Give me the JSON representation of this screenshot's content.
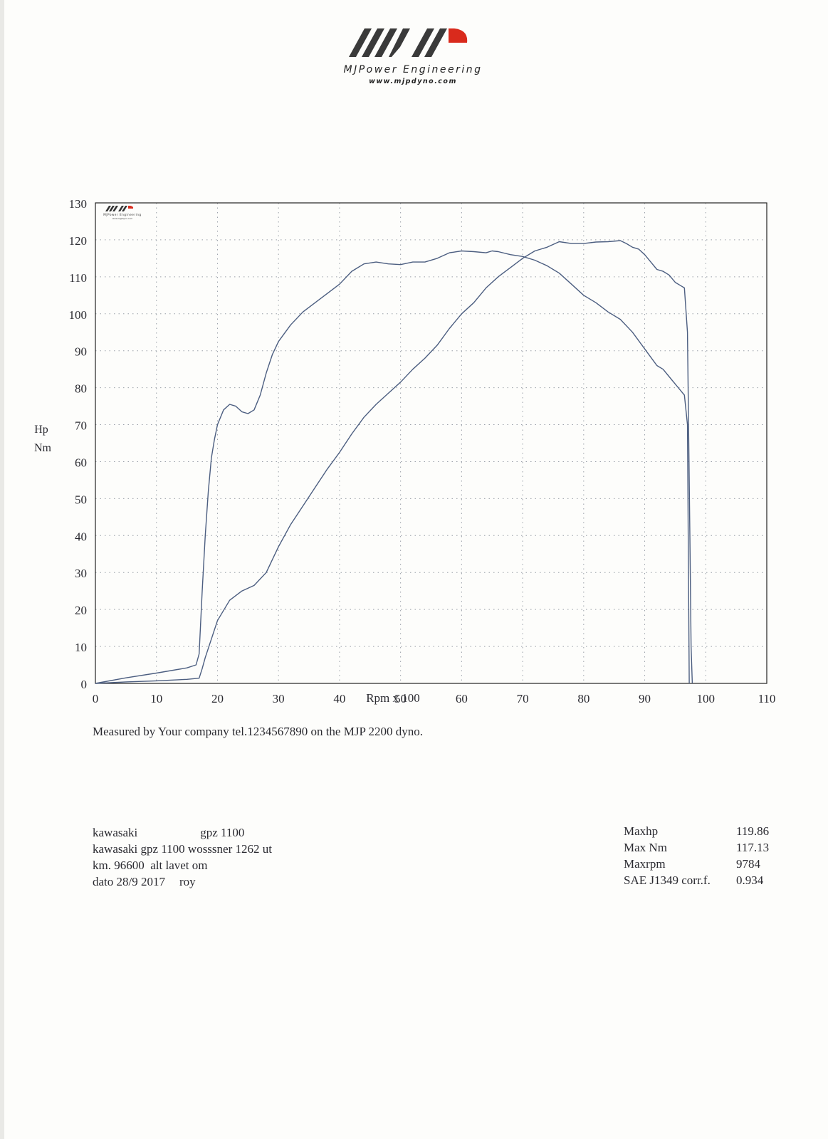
{
  "brand": {
    "name": "MJPower Engineering",
    "url": "www.mjpdyno.com",
    "colors": {
      "stripes": "#3a3a3a",
      "accent": "#d92a1c"
    }
  },
  "chart_data": {
    "type": "line",
    "ylabel": [
      "Hp",
      "Nm"
    ],
    "xlabel": "Rpm x 100",
    "xlim": [
      0,
      110
    ],
    "ylim": [
      0,
      130
    ],
    "xticks": [
      0,
      10,
      20,
      30,
      40,
      50,
      60,
      70,
      80,
      90,
      100,
      110
    ],
    "yticks": [
      0,
      10,
      20,
      30,
      40,
      50,
      60,
      70,
      80,
      90,
      100,
      110,
      120,
      130
    ],
    "grid": "dotted",
    "line_color": "#4c5e80",
    "series": [
      {
        "x": [
          0,
          5,
          10,
          15,
          16.5,
          17,
          17.5,
          18,
          18.5,
          19,
          19.5,
          20,
          21,
          22,
          23,
          24,
          25,
          26,
          27,
          28,
          29,
          30,
          32,
          34,
          36,
          38,
          40,
          42,
          44,
          46,
          48,
          50,
          52,
          54,
          56,
          58,
          60,
          62,
          64,
          65,
          66,
          68,
          70,
          72,
          74,
          76,
          78,
          80,
          82,
          84,
          86,
          88,
          90,
          92,
          93,
          94,
          95,
          96,
          96.5,
          97,
          97.3
        ],
        "y": [
          0,
          1.5,
          2.8,
          4.2,
          5,
          8,
          25,
          40,
          52,
          61,
          66,
          70,
          74,
          75.5,
          75,
          73.5,
          73,
          74,
          78,
          84,
          89,
          92.5,
          97,
          100.5,
          103,
          105.5,
          108,
          111.5,
          113.5,
          114,
          113.5,
          113.3,
          114,
          114,
          115,
          116.5,
          117,
          116.8,
          116.5,
          117,
          116.8,
          116,
          115.5,
          114.5,
          113,
          111,
          108,
          105,
          103,
          100.5,
          98.5,
          95,
          90.5,
          86,
          85,
          83,
          81,
          79,
          78,
          70,
          0
        ]
      },
      {
        "x": [
          0,
          5,
          10,
          15,
          17,
          17.5,
          18,
          19,
          20,
          22,
          24,
          26,
          28,
          30,
          32,
          34,
          36,
          38,
          40,
          42,
          44,
          46,
          48,
          50,
          52,
          54,
          56,
          58,
          60,
          62,
          64,
          66,
          68,
          70,
          72,
          74,
          76,
          78,
          80,
          82,
          84,
          86,
          87,
          88,
          89,
          90,
          91,
          92,
          93,
          94,
          95,
          96,
          96.5,
          97,
          97.4,
          97.6,
          97.8
        ],
        "y": [
          0,
          0.4,
          0.7,
          1.1,
          1.4,
          4,
          7,
          12,
          17,
          22.5,
          25,
          26.5,
          30,
          37,
          43,
          48,
          53,
          58,
          62.5,
          67.5,
          72,
          75.5,
          78.5,
          81.5,
          85,
          88,
          91.5,
          96,
          100,
          103,
          107,
          110,
          112.5,
          115,
          117,
          118,
          119.5,
          119,
          119,
          119.4,
          119.5,
          119.8,
          119,
          118,
          117.5,
          116,
          114,
          112,
          111.5,
          110.5,
          108.5,
          107.5,
          107,
          95,
          40,
          10,
          0
        ]
      }
    ]
  },
  "chart_inset_logo": {
    "name": "MJPower Engineering",
    "url": "www.mjpdyno.com"
  },
  "caption": "Measured by Your company tel.1234567890 on the MJP 2200 dyno.",
  "vehicle": {
    "make": "kawasaki",
    "model": "gpz 1100",
    "description": "kawasaki gpz 1100 wosssner 1262 ut",
    "mileage": "km. 96600  alt lavet om",
    "date": "dato 28/9 2017",
    "operator": "roy"
  },
  "results": [
    {
      "label": "Maxhp",
      "value": "119.86"
    },
    {
      "label": "Max Nm",
      "value": "117.13"
    },
    {
      "label": "Maxrpm",
      "value": "9784"
    },
    {
      "label": "SAE J1349 corr.f.",
      "value": "0.934"
    }
  ]
}
